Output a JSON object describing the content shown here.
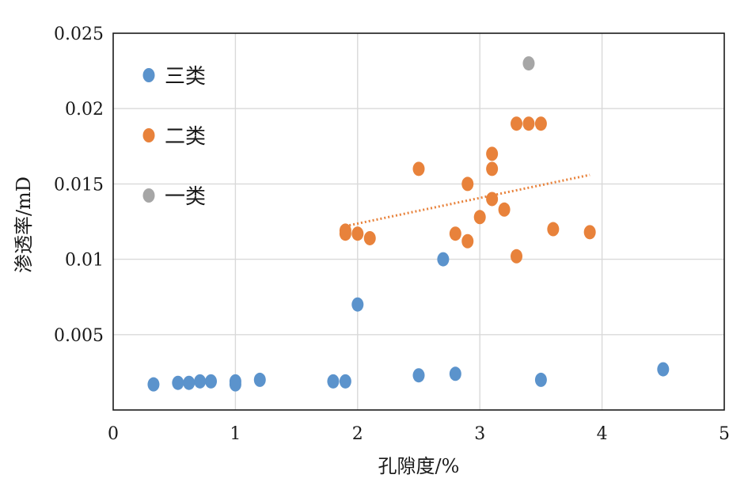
{
  "chart_data": {
    "type": "scatter",
    "title": "",
    "xlabel": "孔隙度/%",
    "ylabel": "渗透率/mD",
    "xlim": [
      0,
      5
    ],
    "ylim": [
      0,
      0.025
    ],
    "x_ticks": [
      "0",
      "1",
      "2",
      "3",
      "4",
      "5"
    ],
    "y_ticks": [
      "0.005",
      "0.01",
      "0.015",
      "0.02",
      "0.025"
    ],
    "grid": true,
    "legend_position": "top-left",
    "series": [
      {
        "name": "三类",
        "color": "#5b93cc",
        "points": [
          [
            0.33,
            0.0017
          ],
          [
            0.53,
            0.0018
          ],
          [
            0.62,
            0.0018
          ],
          [
            0.71,
            0.0019
          ],
          [
            0.8,
            0.0019
          ],
          [
            1.0,
            0.0017
          ],
          [
            1.0,
            0.0019
          ],
          [
            1.2,
            0.002
          ],
          [
            1.8,
            0.0019
          ],
          [
            1.9,
            0.0019
          ],
          [
            2.0,
            0.007
          ],
          [
            2.5,
            0.0023
          ],
          [
            2.7,
            0.01
          ],
          [
            2.8,
            0.0024
          ],
          [
            3.5,
            0.002
          ],
          [
            4.5,
            0.0027
          ]
        ]
      },
      {
        "name": "二类",
        "color": "#e8823b",
        "points": [
          [
            1.9,
            0.0119
          ],
          [
            1.9,
            0.0117
          ],
          [
            2.0,
            0.0117
          ],
          [
            2.1,
            0.0114
          ],
          [
            2.5,
            0.016
          ],
          [
            2.8,
            0.0117
          ],
          [
            2.9,
            0.015
          ],
          [
            2.9,
            0.0112
          ],
          [
            3.0,
            0.0128
          ],
          [
            3.1,
            0.017
          ],
          [
            3.1,
            0.016
          ],
          [
            3.1,
            0.014
          ],
          [
            3.2,
            0.0133
          ],
          [
            3.3,
            0.019
          ],
          [
            3.3,
            0.0102
          ],
          [
            3.4,
            0.019
          ],
          [
            3.5,
            0.019
          ],
          [
            3.6,
            0.012
          ],
          [
            3.9,
            0.0118
          ]
        ]
      },
      {
        "name": "一类",
        "color": "#a6a6a6",
        "points": [
          [
            3.4,
            0.023
          ]
        ]
      }
    ],
    "trendline": {
      "series": "二类",
      "color": "#e8823b",
      "style": "dotted",
      "x_start": 1.9,
      "y_start": 0.0122,
      "x_end": 3.9,
      "y_end": 0.0156
    }
  }
}
